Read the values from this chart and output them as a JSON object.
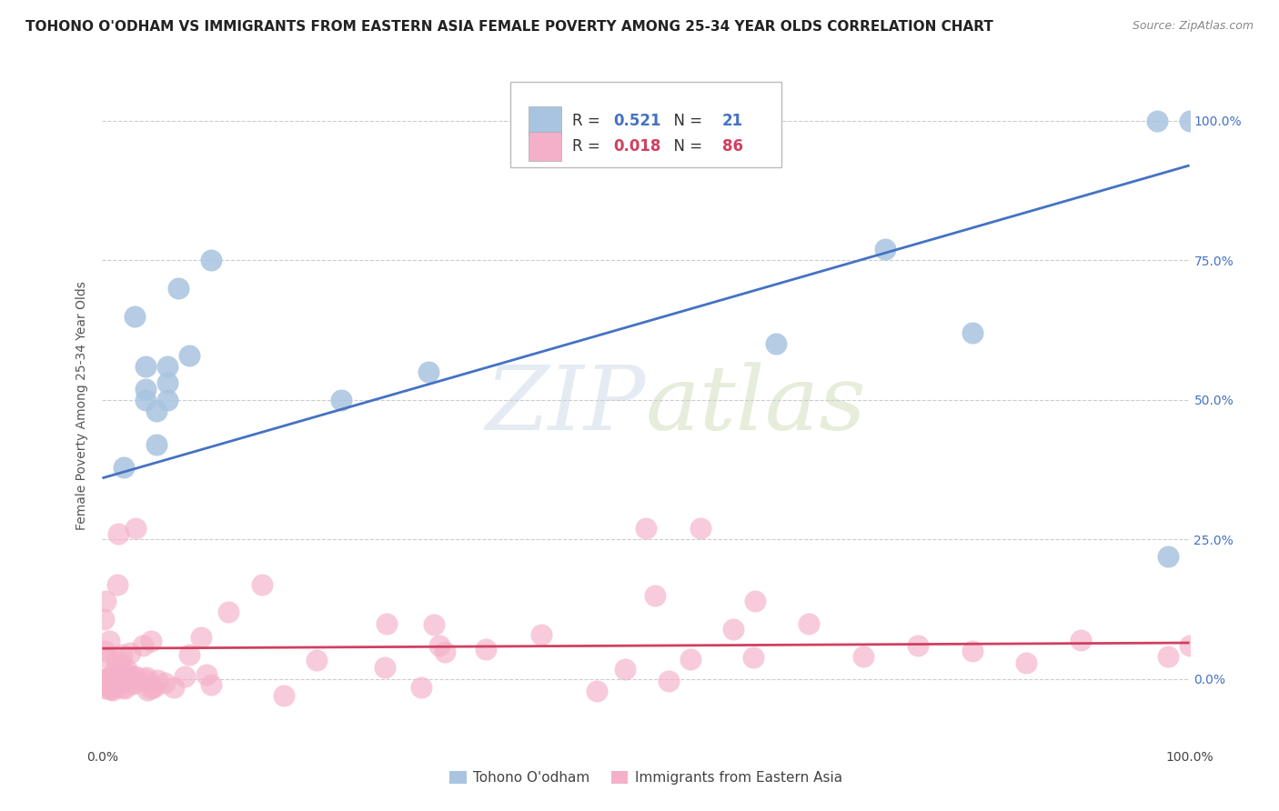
{
  "title": "TOHONO O'ODHAM VS IMMIGRANTS FROM EASTERN ASIA FEMALE POVERTY AMONG 25-34 YEAR OLDS CORRELATION CHART",
  "source": "Source: ZipAtlas.com",
  "ylabel": "Female Poverty Among 25-34 Year Olds",
  "xlim": [
    0,
    1.0
  ],
  "ylim": [
    -0.12,
    1.1
  ],
  "ytick_labels": [
    "0.0%",
    "25.0%",
    "50.0%",
    "75.0%",
    "100.0%"
  ],
  "ytick_vals": [
    0.0,
    0.25,
    0.5,
    0.75,
    1.0
  ],
  "blue_R": "0.521",
  "blue_N": "21",
  "pink_R": "0.018",
  "pink_N": "86",
  "blue_color": "#a8c4e0",
  "pink_color": "#f4b0c8",
  "blue_line_color": "#4472c4",
  "pink_line_color": "#d04060",
  "legend_blue_label": "Tohono O'odham",
  "legend_pink_label": "Immigrants from Eastern Asia",
  "watermark_zip": "ZIP",
  "watermark_atlas": "atlas",
  "blue_line_x": [
    0.0,
    1.0
  ],
  "blue_line_y": [
    0.36,
    0.92
  ],
  "pink_line_x": [
    0.0,
    1.0
  ],
  "pink_line_y": [
    0.055,
    0.065
  ],
  "blue_scatter_x": [
    0.02,
    0.03,
    0.04,
    0.04,
    0.05,
    0.05,
    0.06,
    0.06,
    0.06,
    0.07,
    0.08,
    0.1,
    0.22,
    0.3,
    0.62,
    0.72,
    0.8,
    0.97,
    0.98,
    1.0,
    0.04
  ],
  "blue_scatter_y": [
    0.38,
    0.65,
    0.52,
    0.56,
    0.48,
    0.42,
    0.56,
    0.53,
    0.5,
    0.7,
    0.58,
    0.75,
    0.5,
    0.55,
    0.6,
    0.77,
    0.62,
    1.0,
    0.22,
    1.0,
    0.5
  ],
  "grid_color": "#cccccc",
  "background_color": "#ffffff",
  "title_fontsize": 11
}
